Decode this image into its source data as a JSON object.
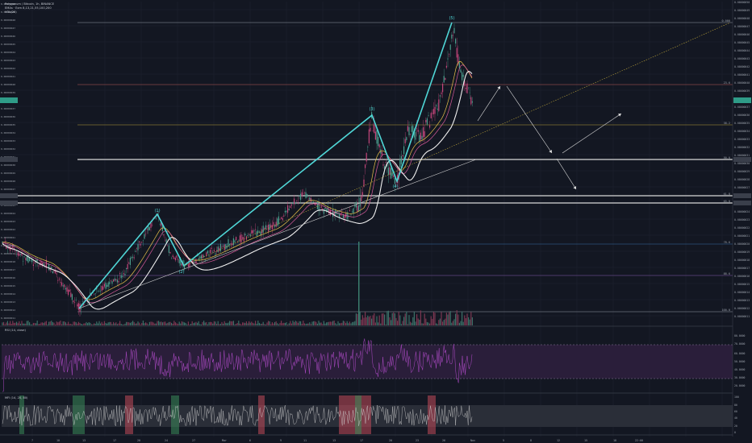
{
  "header": {
    "symbol_line": "Polygonum / Bitcoin, 1h, BINANCE",
    "ema_line": "EMAs · Exm 8,13,21,55,100,200",
    "vol_line": "VOL(20)"
  },
  "rsi": {
    "label": "RSI (14, close)",
    "upper": 70,
    "lower": 30
  },
  "mfi": {
    "label": "MFI (14, 20, 80)",
    "upper": 80,
    "lower": 20
  },
  "elliott_labels": [
    "(1)",
    "(2)",
    "(3)",
    "(4)",
    "(5)"
  ],
  "chart_data": [
    {
      "type": "line",
      "title": "",
      "x": [
        "7",
        "10",
        "13",
        "17",
        "20",
        "24",
        "27",
        "Mar",
        "6",
        "9",
        "11",
        "13",
        "17",
        "20",
        "23",
        "26",
        "Nov",
        "5",
        "8",
        "12",
        "15",
        "18",
        "22:00"
      ],
      "price_axis": [
        "0.00000050",
        "0.00000049",
        "0.00000048",
        "0.00000047",
        "0.00000046",
        "0.00000045",
        "0.00000044",
        "0.00000043",
        "0.00000042",
        "0.00000041",
        "0.00000040",
        "0.00000039",
        "0.00000038",
        "0.00000037",
        "0.00000036",
        "0.00000035",
        "0.00000034",
        "0.00000033",
        "0.00000032",
        "0.00000031",
        "0.00000030",
        "0.00000029",
        "0.00000028",
        "0.00000027",
        "0.00000026",
        "0.00000025",
        "0.00000024",
        "0.00000023",
        "0.00000022",
        "0.00000021",
        "0.00000020",
        "0.00000019",
        "0.00000018",
        "0.00000017",
        "0.00000016",
        "0.00000015",
        "0.00000014",
        "0.00000013",
        "0.00000012",
        "0.00000011"
      ],
      "fib_levels": [
        {
          "label": "0.000",
          "y": 28,
          "color": "#9aa0aa"
        },
        {
          "label": "23.6",
          "y": 105,
          "color": "#c25b5b"
        },
        {
          "label": "38.2",
          "y": 155,
          "color": "#b8a03a"
        },
        {
          "label": "50.0",
          "y": 198,
          "color": "#d8d8d8"
        },
        {
          "label": "61.8",
          "y": 243,
          "color": "#d8d8d8"
        },
        {
          "label": "65.0",
          "y": 252,
          "color": "#d8d8d8"
        },
        {
          "label": "78.6",
          "y": 303,
          "color": "#3a6ea5"
        },
        {
          "label": "88.6",
          "y": 342,
          "color": "#8a5bb0"
        },
        {
          "label": "100.0",
          "y": 387,
          "color": "#9aa0aa"
        }
      ],
      "ylim": [
        1.1e-07,
        5e-07
      ]
    }
  ]
}
